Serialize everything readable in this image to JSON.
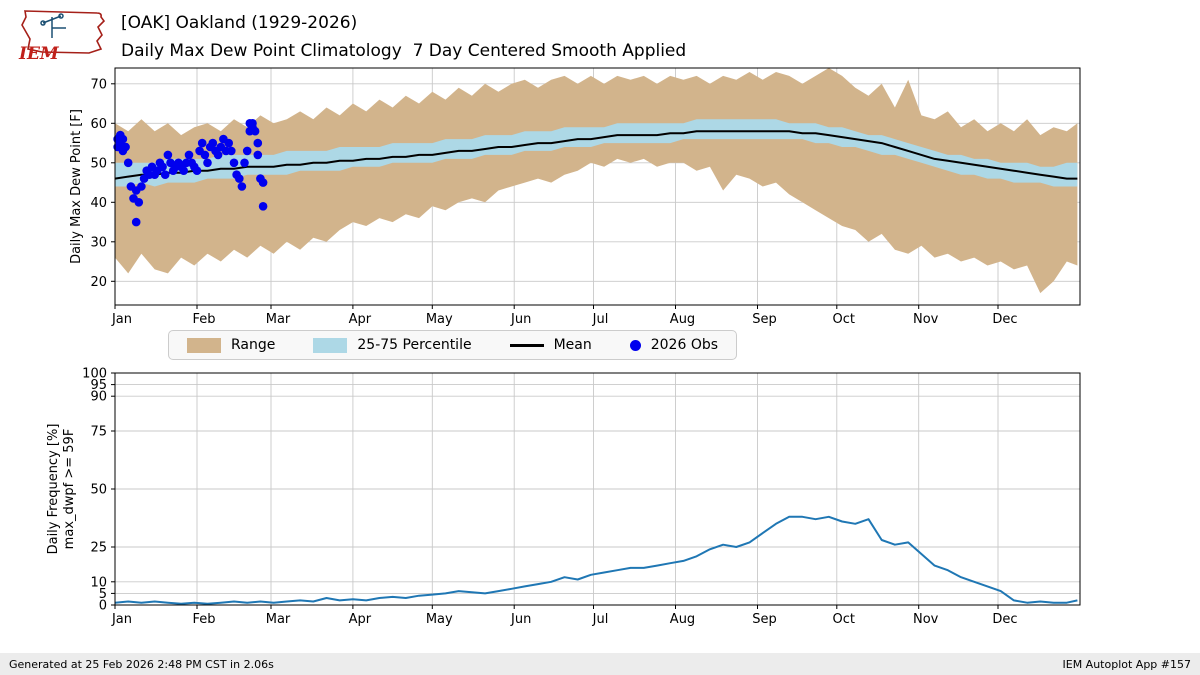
{
  "header": {
    "title_line1": "[OAK] Oakland (1929-2026)",
    "title_line2": "Daily Max Dew Point Climatology  7 Day Centered Smooth Applied",
    "logo_text": "IEM"
  },
  "legend": {
    "items": [
      {
        "label": "Range",
        "color": "#d2b48c"
      },
      {
        "label": "25-75 Percentile",
        "color": "#add8e6"
      },
      {
        "label": "Mean",
        "color": "#000000"
      },
      {
        "label": "2026 Obs",
        "color": "#0000ee"
      }
    ]
  },
  "footer": {
    "left": "Generated at 25 Feb 2026 2:48 PM CST in 2.06s",
    "right": "IEM Autoplot App #157"
  },
  "chart_data": [
    {
      "type": "area",
      "title": "Daily Max Dew Point Climatology",
      "ylabel": "Daily Max Dew Point [F]",
      "ylim": [
        14,
        74
      ],
      "yticks": [
        20,
        30,
        40,
        50,
        60,
        70
      ],
      "xtick_labels": [
        "Jan",
        "Feb",
        "Mar",
        "Apr",
        "May",
        "Jun",
        "Jul",
        "Aug",
        "Sep",
        "Oct",
        "Nov",
        "Dec"
      ],
      "grid": true,
      "legend_position": "below",
      "x_days": [
        0,
        5,
        10,
        15,
        20,
        25,
        30,
        35,
        40,
        45,
        50,
        55,
        60,
        65,
        70,
        75,
        80,
        85,
        90,
        95,
        100,
        105,
        110,
        115,
        120,
        125,
        130,
        135,
        140,
        145,
        150,
        155,
        160,
        165,
        170,
        175,
        180,
        185,
        190,
        195,
        200,
        205,
        210,
        215,
        220,
        225,
        230,
        235,
        240,
        245,
        250,
        255,
        260,
        265,
        270,
        275,
        280,
        285,
        290,
        295,
        300,
        305,
        310,
        315,
        320,
        325,
        330,
        335,
        340,
        345,
        350,
        355,
        360,
        364
      ],
      "series": [
        {
          "name": "Range",
          "type": "band",
          "color": "#d2b48c",
          "hi": [
            60,
            58,
            61,
            58,
            60,
            57,
            59,
            60,
            58,
            61,
            59,
            62,
            60,
            61,
            63,
            61,
            64,
            62,
            65,
            63,
            66,
            64,
            67,
            65,
            68,
            66,
            69,
            67,
            70,
            68,
            70,
            71,
            69,
            71,
            72,
            70,
            72,
            70,
            72,
            71,
            72,
            70,
            72,
            71,
            72,
            70,
            72,
            71,
            73,
            71,
            73,
            72,
            70,
            72,
            74,
            72,
            69,
            67,
            70,
            64,
            71,
            62,
            61,
            63,
            59,
            61,
            58,
            60,
            58,
            61,
            57,
            59,
            58,
            60
          ],
          "lo": [
            26,
            22,
            27,
            23,
            22,
            26,
            24,
            27,
            25,
            28,
            26,
            29,
            27,
            30,
            28,
            31,
            30,
            33,
            35,
            34,
            36,
            35,
            37,
            36,
            39,
            38,
            40,
            41,
            40,
            43,
            44,
            45,
            46,
            45,
            47,
            48,
            50,
            49,
            51,
            50,
            51,
            49,
            50,
            50,
            48,
            49,
            43,
            47,
            46,
            44,
            45,
            42,
            40,
            38,
            36,
            34,
            33,
            30,
            32,
            28,
            27,
            29,
            26,
            27,
            25,
            26,
            24,
            25,
            23,
            24,
            17,
            20,
            25,
            24
          ]
        },
        {
          "name": "25-75 Percentile",
          "type": "band",
          "color": "#add8e6",
          "hi": [
            50,
            50,
            50,
            50,
            51,
            51,
            51,
            51,
            52,
            52,
            52,
            52,
            52,
            53,
            53,
            53,
            53,
            54,
            54,
            54,
            54,
            55,
            55,
            55,
            55,
            56,
            56,
            56,
            57,
            57,
            57,
            58,
            58,
            58,
            59,
            59,
            59,
            59,
            60,
            60,
            60,
            60,
            60,
            60,
            61,
            61,
            61,
            61,
            61,
            61,
            61,
            60,
            60,
            60,
            59,
            59,
            58,
            57,
            57,
            56,
            55,
            54,
            53,
            52,
            52,
            51,
            51,
            50,
            50,
            50,
            49,
            49,
            50,
            50
          ],
          "lo": [
            44,
            44,
            45,
            44,
            45,
            45,
            45,
            46,
            46,
            46,
            47,
            47,
            47,
            47,
            48,
            48,
            48,
            48,
            49,
            49,
            49,
            50,
            50,
            50,
            50,
            51,
            51,
            51,
            52,
            52,
            52,
            53,
            53,
            53,
            54,
            54,
            54,
            55,
            55,
            55,
            55,
            55,
            55,
            56,
            56,
            56,
            56,
            56,
            56,
            56,
            56,
            56,
            56,
            55,
            55,
            54,
            54,
            53,
            52,
            52,
            51,
            50,
            49,
            48,
            47,
            47,
            46,
            46,
            45,
            45,
            45,
            44,
            44,
            44
          ]
        },
        {
          "name": "Mean",
          "type": "line",
          "color": "#000000",
          "values": [
            46,
            46.5,
            47,
            47,
            47.5,
            47.5,
            48,
            48,
            48.5,
            48.5,
            49,
            49,
            49,
            49.5,
            49.5,
            50,
            50,
            50.5,
            50.5,
            51,
            51,
            51.5,
            51.5,
            52,
            52,
            52.5,
            53,
            53,
            53.5,
            54,
            54,
            54.5,
            55,
            55,
            55.5,
            56,
            56,
            56.5,
            57,
            57,
            57,
            57,
            57.5,
            57.5,
            58,
            58,
            58,
            58,
            58,
            58,
            58,
            58,
            57.5,
            57.5,
            57,
            56.5,
            56,
            55.5,
            55,
            54,
            53,
            52,
            51,
            50.5,
            50,
            49.5,
            49,
            48.5,
            48,
            47.5,
            47,
            46.5,
            46,
            46
          ]
        },
        {
          "name": "2026 Obs",
          "type": "scatter",
          "color": "#0000ee",
          "points": [
            [
              1,
              54
            ],
            [
              1,
              56
            ],
            [
              2,
              55
            ],
            [
              2,
              57
            ],
            [
              3,
              53
            ],
            [
              3,
              56
            ],
            [
              4,
              54
            ],
            [
              5,
              50
            ],
            [
              6,
              44
            ],
            [
              7,
              41
            ],
            [
              8,
              35
            ],
            [
              8,
              43
            ],
            [
              9,
              40
            ],
            [
              10,
              44
            ],
            [
              11,
              46
            ],
            [
              12,
              48
            ],
            [
              13,
              47
            ],
            [
              14,
              49
            ],
            [
              15,
              47
            ],
            [
              16,
              48
            ],
            [
              17,
              50
            ],
            [
              18,
              49
            ],
            [
              19,
              47
            ],
            [
              20,
              52
            ],
            [
              21,
              50
            ],
            [
              22,
              48
            ],
            [
              23,
              49
            ],
            [
              24,
              50
            ],
            [
              25,
              49
            ],
            [
              26,
              48
            ],
            [
              27,
              50
            ],
            [
              28,
              52
            ],
            [
              29,
              50
            ],
            [
              30,
              49
            ],
            [
              31,
              48
            ],
            [
              32,
              53
            ],
            [
              33,
              55
            ],
            [
              34,
              52
            ],
            [
              35,
              50
            ],
            [
              36,
              54
            ],
            [
              37,
              55
            ],
            [
              38,
              53
            ],
            [
              39,
              52
            ],
            [
              40,
              54
            ],
            [
              41,
              56
            ],
            [
              42,
              53
            ],
            [
              43,
              55
            ],
            [
              44,
              53
            ],
            [
              45,
              50
            ],
            [
              46,
              47
            ],
            [
              47,
              46
            ],
            [
              48,
              44
            ],
            [
              49,
              50
            ],
            [
              50,
              53
            ],
            [
              51,
              58
            ],
            [
              51,
              60
            ],
            [
              52,
              59
            ],
            [
              52,
              60
            ],
            [
              53,
              58
            ],
            [
              54,
              55
            ],
            [
              54,
              52
            ],
            [
              55,
              46
            ],
            [
              56,
              45
            ],
            [
              56,
              39
            ]
          ]
        }
      ]
    },
    {
      "type": "line",
      "title": "Daily Frequency of Max Dew Point >= 59F",
      "ylabel": [
        "Daily Frequency [%]",
        "max_dwpf >= 59F"
      ],
      "ylim": [
        0,
        100
      ],
      "yticks": [
        0,
        5,
        10,
        25,
        50,
        75,
        90,
        95,
        100
      ],
      "xtick_labels": [
        "Jan",
        "Feb",
        "Mar",
        "Apr",
        "May",
        "Jun",
        "Jul",
        "Aug",
        "Sep",
        "Oct",
        "Nov",
        "Dec"
      ],
      "grid": true,
      "x_days": [
        0,
        5,
        10,
        15,
        20,
        25,
        30,
        35,
        40,
        45,
        50,
        55,
        60,
        65,
        70,
        75,
        80,
        85,
        90,
        95,
        100,
        105,
        110,
        115,
        120,
        125,
        130,
        135,
        140,
        145,
        150,
        155,
        160,
        165,
        170,
        175,
        180,
        185,
        190,
        195,
        200,
        205,
        210,
        215,
        220,
        225,
        230,
        235,
        240,
        245,
        250,
        255,
        260,
        265,
        270,
        275,
        280,
        285,
        290,
        295,
        300,
        305,
        310,
        315,
        320,
        325,
        330,
        335,
        340,
        345,
        350,
        355,
        360,
        364
      ],
      "series": [
        {
          "name": "Frequency",
          "type": "line",
          "color": "#1f77b4",
          "values": [
            1,
            1.5,
            1,
            1.5,
            1,
            0.5,
            1,
            0.5,
            1,
            1.5,
            1,
            1.5,
            1,
            1.5,
            2,
            1.5,
            3,
            2,
            2.5,
            2,
            3,
            3.5,
            3,
            4,
            4.5,
            5,
            6,
            5.5,
            5,
            6,
            7,
            8,
            9,
            10,
            12,
            11,
            13,
            14,
            15,
            16,
            16,
            17,
            18,
            19,
            21,
            24,
            26,
            25,
            27,
            31,
            35,
            38,
            38,
            37,
            38,
            36,
            35,
            37,
            28,
            26,
            27,
            22,
            17,
            15,
            12,
            10,
            8,
            6,
            2,
            1,
            1.5,
            1,
            1,
            2
          ]
        }
      ]
    }
  ]
}
